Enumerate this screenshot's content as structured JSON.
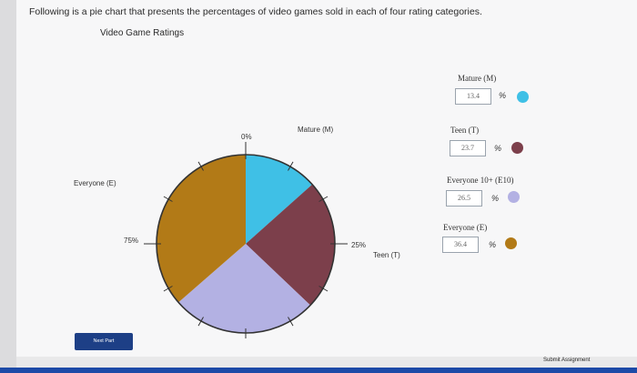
{
  "question": "Following is a pie chart that presents the percentages of video games sold in each of four rating categories.",
  "chart_data": {
    "type": "pie",
    "title": "Video Game Ratings",
    "slices": [
      {
        "name": "Mature (M)",
        "value": 13.4,
        "color": "#3fc0e6"
      },
      {
        "name": "Teen (T)",
        "value": 23.7,
        "color": "#7c3f4b"
      },
      {
        "name": "Everyone 10+ (E10)",
        "value": 26.5,
        "color": "#b3b1e3"
      },
      {
        "name": "Everyone (E)",
        "value": 36.4,
        "color": "#b27a17"
      }
    ],
    "annotations": {
      "mature": "Mature (M)",
      "everyone": "Everyone (E)",
      "teen": "Teen (T)",
      "pct_0": "0%",
      "pct_25": "25%",
      "pct_75": "75%"
    }
  },
  "inputs": [
    {
      "label": "Mature (M)",
      "value": "13.4",
      "unit": "%",
      "color": "#3fc0e6"
    },
    {
      "label": "Teen (T)",
      "value": "23.7",
      "unit": "%",
      "color": "#7c3f4b"
    },
    {
      "label": "Everyone 10+ (E10)",
      "value": "26.5",
      "unit": "%",
      "color": "#b3b1e3"
    },
    {
      "label": "Everyone (E)",
      "value": "36.4",
      "unit": "%",
      "color": "#b27a17"
    }
  ],
  "buttons": {
    "next": "Next Part",
    "submit": "Submit Assignment"
  }
}
